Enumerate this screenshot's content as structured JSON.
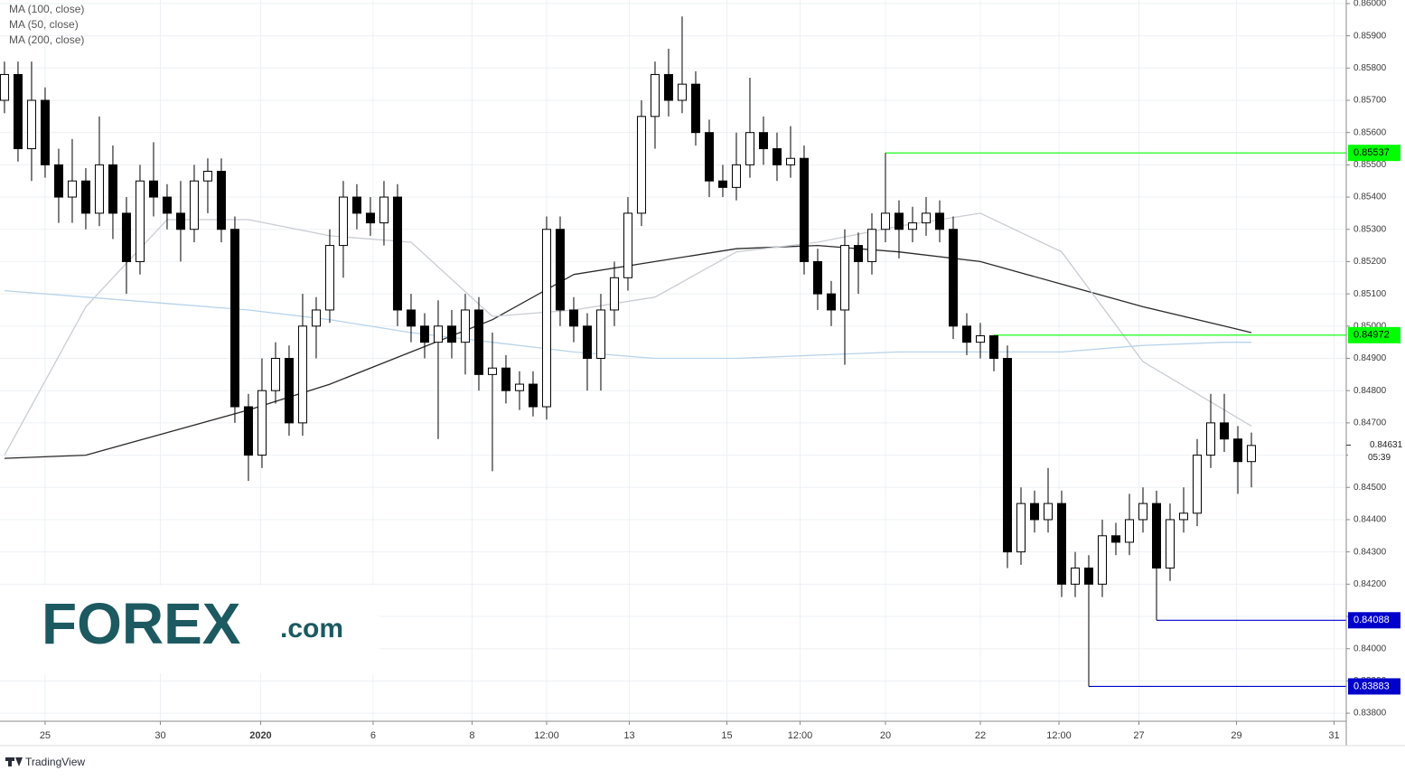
{
  "chart_data": {
    "type": "candlestick",
    "legend": [
      "MA (100, close)",
      "MA (50, close)",
      "MA (200, close)"
    ],
    "xlim": [
      -0.33,
      99
    ],
    "ylim": [
      0.83775,
      0.86011
    ],
    "grid": true,
    "up_color": "#ffffff",
    "down_color": "#000000",
    "xticks": [
      {
        "value": 3,
        "label": "25"
      },
      {
        "value": 11.5,
        "label": "30"
      },
      {
        "value": 18.9,
        "label": "2020"
      },
      {
        "value": 27.2,
        "label": "6"
      },
      {
        "value": 34.5,
        "label": "8"
      },
      {
        "value": 40,
        "label": "12:00"
      },
      {
        "value": 46.1,
        "label": "13"
      },
      {
        "value": 53.3,
        "label": "15"
      },
      {
        "value": 58.7,
        "label": "12:00"
      },
      {
        "value": 65,
        "label": "20"
      },
      {
        "value": 72,
        "label": "22"
      },
      {
        "value": 77.8,
        "label": "12:00"
      },
      {
        "value": 83.7,
        "label": "27"
      },
      {
        "value": 90.9,
        "label": "29"
      },
      {
        "value": 98.1,
        "label": "31"
      }
    ],
    "yticks": [
      {
        "value": 0.838,
        "label": "0.83800"
      },
      {
        "value": 0.839,
        "label": "0.83900"
      },
      {
        "value": 0.84,
        "label": "0.84000"
      },
      {
        "value": 0.841,
        "label": "0.84100"
      },
      {
        "value": 0.842,
        "label": "0.84200"
      },
      {
        "value": 0.843,
        "label": "0.84300"
      },
      {
        "value": 0.844,
        "label": "0.84400"
      },
      {
        "value": 0.845,
        "label": "0.84500"
      },
      {
        "value": 0.846,
        "label": "0.84600"
      },
      {
        "value": 0.847,
        "label": "0.84700"
      },
      {
        "value": 0.848,
        "label": "0.84800"
      },
      {
        "value": 0.849,
        "label": "0.84900"
      },
      {
        "value": 0.85,
        "label": "0.85000"
      },
      {
        "value": 0.851,
        "label": "0.85100"
      },
      {
        "value": 0.852,
        "label": "0.85200"
      },
      {
        "value": 0.853,
        "label": "0.85300"
      },
      {
        "value": 0.854,
        "label": "0.85400"
      },
      {
        "value": 0.855,
        "label": "0.85500"
      },
      {
        "value": 0.856,
        "label": "0.85600"
      },
      {
        "value": 0.857,
        "label": "0.85700"
      },
      {
        "value": 0.858,
        "label": "0.85800"
      },
      {
        "value": 0.859,
        "label": "0.85900"
      },
      {
        "value": 0.86,
        "label": "0.86000"
      }
    ],
    "candles": [
      [
        0.857,
        0.8582,
        0.8566,
        0.8578
      ],
      [
        0.8578,
        0.8582,
        0.8551,
        0.8555
      ],
      [
        0.8555,
        0.8582,
        0.8545,
        0.857
      ],
      [
        0.857,
        0.8574,
        0.8546,
        0.855
      ],
      [
        0.855,
        0.8555,
        0.8532,
        0.854
      ],
      [
        0.854,
        0.8558,
        0.8532,
        0.8545
      ],
      [
        0.8545,
        0.8549,
        0.853,
        0.8535
      ],
      [
        0.8535,
        0.8565,
        0.8531,
        0.855
      ],
      [
        0.855,
        0.8556,
        0.8527,
        0.8535
      ],
      [
        0.8535,
        0.854,
        0.851,
        0.852
      ],
      [
        0.852,
        0.855,
        0.8516,
        0.8545
      ],
      [
        0.8545,
        0.8557,
        0.8534,
        0.854
      ],
      [
        0.854,
        0.8544,
        0.853,
        0.8535
      ],
      [
        0.8535,
        0.8545,
        0.852,
        0.853
      ],
      [
        0.853,
        0.855,
        0.8526,
        0.8545
      ],
      [
        0.8545,
        0.8552,
        0.8535,
        0.8548
      ],
      [
        0.8548,
        0.8552,
        0.8526,
        0.853
      ],
      [
        0.853,
        0.8534,
        0.847,
        0.8475
      ],
      [
        0.8475,
        0.8479,
        0.8452,
        0.846
      ],
      [
        0.846,
        0.849,
        0.8456,
        0.848
      ],
      [
        0.848,
        0.8495,
        0.8476,
        0.849
      ],
      [
        0.849,
        0.8494,
        0.8466,
        0.847
      ],
      [
        0.847,
        0.851,
        0.8466,
        0.85
      ],
      [
        0.85,
        0.8509,
        0.849,
        0.8505
      ],
      [
        0.8505,
        0.853,
        0.8501,
        0.8525
      ],
      [
        0.8525,
        0.8545,
        0.8515,
        0.854
      ],
      [
        0.854,
        0.8544,
        0.853,
        0.8535
      ],
      [
        0.8535,
        0.854,
        0.8528,
        0.8532
      ],
      [
        0.8532,
        0.8545,
        0.8525,
        0.854
      ],
      [
        0.854,
        0.8544,
        0.85,
        0.8505
      ],
      [
        0.8505,
        0.851,
        0.8495,
        0.85
      ],
      [
        0.85,
        0.8504,
        0.849,
        0.8495
      ],
      [
        0.8495,
        0.8508,
        0.8465,
        0.85
      ],
      [
        0.85,
        0.8505,
        0.849,
        0.8495
      ],
      [
        0.8495,
        0.851,
        0.8485,
        0.8505
      ],
      [
        0.8505,
        0.8509,
        0.848,
        0.8485
      ],
      [
        0.8485,
        0.8498,
        0.8455,
        0.8487
      ],
      [
        0.8487,
        0.8491,
        0.8476,
        0.848
      ],
      [
        0.848,
        0.8486,
        0.8474,
        0.8482
      ],
      [
        0.8482,
        0.8486,
        0.8472,
        0.8475
      ],
      [
        0.8475,
        0.8534,
        0.8471,
        0.853
      ],
      [
        0.853,
        0.8534,
        0.85,
        0.8505
      ],
      [
        0.8505,
        0.8509,
        0.8495,
        0.85
      ],
      [
        0.85,
        0.8504,
        0.848,
        0.849
      ],
      [
        0.849,
        0.851,
        0.848,
        0.8505
      ],
      [
        0.8505,
        0.852,
        0.85,
        0.8515
      ],
      [
        0.8515,
        0.854,
        0.8511,
        0.8535
      ],
      [
        0.8535,
        0.857,
        0.8531,
        0.8565
      ],
      [
        0.8565,
        0.8582,
        0.8555,
        0.8578
      ],
      [
        0.8578,
        0.8586,
        0.8565,
        0.857
      ],
      [
        0.857,
        0.8596,
        0.8566,
        0.8575
      ],
      [
        0.8575,
        0.8579,
        0.8556,
        0.856
      ],
      [
        0.856,
        0.8564,
        0.854,
        0.8545
      ],
      [
        0.8545,
        0.855,
        0.854,
        0.8543
      ],
      [
        0.8543,
        0.856,
        0.8539,
        0.855
      ],
      [
        0.855,
        0.8577,
        0.8546,
        0.856
      ],
      [
        0.856,
        0.8565,
        0.855,
        0.8555
      ],
      [
        0.8555,
        0.856,
        0.8545,
        0.855
      ],
      [
        0.855,
        0.8562,
        0.8546,
        0.8552
      ],
      [
        0.8552,
        0.8556,
        0.8516,
        0.852
      ],
      [
        0.852,
        0.8524,
        0.8505,
        0.851
      ],
      [
        0.851,
        0.8514,
        0.85,
        0.8505
      ],
      [
        0.8505,
        0.853,
        0.8488,
        0.8525
      ],
      [
        0.8525,
        0.8529,
        0.851,
        0.852
      ],
      [
        0.852,
        0.8535,
        0.8516,
        0.853
      ],
      [
        0.853,
        0.85537,
        0.8526,
        0.8535
      ],
      [
        0.8535,
        0.8539,
        0.8521,
        0.853
      ],
      [
        0.853,
        0.8537,
        0.8526,
        0.8532
      ],
      [
        0.8532,
        0.854,
        0.8528,
        0.8535
      ],
      [
        0.8535,
        0.8539,
        0.8526,
        0.853
      ],
      [
        0.853,
        0.8534,
        0.8496,
        0.85
      ],
      [
        0.85,
        0.8504,
        0.8491,
        0.8495
      ],
      [
        0.8495,
        0.8501,
        0.849,
        0.8497
      ],
      [
        0.8497,
        0.84972,
        0.8486,
        0.849
      ],
      [
        0.849,
        0.8494,
        0.8425,
        0.843
      ],
      [
        0.843,
        0.845,
        0.8426,
        0.8445
      ],
      [
        0.8445,
        0.8449,
        0.8436,
        0.844
      ],
      [
        0.844,
        0.8456,
        0.8436,
        0.8445
      ],
      [
        0.8445,
        0.8449,
        0.8416,
        0.842
      ],
      [
        0.842,
        0.843,
        0.8416,
        0.8425
      ],
      [
        0.8425,
        0.8429,
        0.83883,
        0.842
      ],
      [
        0.842,
        0.844,
        0.8416,
        0.8435
      ],
      [
        0.8435,
        0.8439,
        0.8429,
        0.8433
      ],
      [
        0.8433,
        0.8448,
        0.8429,
        0.844
      ],
      [
        0.844,
        0.845,
        0.8436,
        0.8445
      ],
      [
        0.8445,
        0.8449,
        0.84088,
        0.8425
      ],
      [
        0.8425,
        0.8445,
        0.8421,
        0.844
      ],
      [
        0.844,
        0.845,
        0.8436,
        0.8442
      ],
      [
        0.8442,
        0.8465,
        0.8438,
        0.846
      ],
      [
        0.846,
        0.8479,
        0.8456,
        0.847
      ],
      [
        0.847,
        0.8479,
        0.8461,
        0.8465
      ],
      [
        0.8465,
        0.8469,
        0.8448,
        0.8458
      ],
      [
        0.8458,
        0.8467,
        0.845,
        0.8463
      ]
    ],
    "series": [
      {
        "name": "MA (100, close)",
        "color": "#2a2a2a",
        "x": [
          0,
          6,
          12,
          18,
          24,
          30,
          36,
          42,
          48,
          54,
          60,
          66,
          72,
          78,
          84,
          90,
          92
        ],
        "values": [
          0.8459,
          0.846,
          0.8467,
          0.8474,
          0.8482,
          0.8492,
          0.8502,
          0.8516,
          0.852,
          0.8524,
          0.8525,
          0.8523,
          0.852,
          0.8513,
          0.8506,
          0.85,
          0.8498
        ]
      },
      {
        "name": "MA (50, close)",
        "color": "#c9ccd3",
        "x": [
          0,
          6,
          12,
          18,
          24,
          30,
          36,
          42,
          48,
          54,
          60,
          66,
          72,
          78,
          84,
          90,
          92
        ],
        "values": [
          0.846,
          0.8506,
          0.8533,
          0.8533,
          0.8528,
          0.8526,
          0.8503,
          0.8505,
          0.8509,
          0.8523,
          0.8526,
          0.8531,
          0.8535,
          0.8523,
          0.8489,
          0.8474,
          0.8469
        ]
      },
      {
        "name": "MA (200, close)",
        "color": "#b7d3ea",
        "x": [
          0,
          6,
          12,
          18,
          24,
          30,
          36,
          42,
          48,
          54,
          60,
          66,
          72,
          78,
          84,
          90,
          92
        ],
        "values": [
          0.8511,
          0.8509,
          0.8507,
          0.8505,
          0.8502,
          0.8498,
          0.8495,
          0.8492,
          0.849,
          0.849,
          0.8491,
          0.8492,
          0.8492,
          0.8492,
          0.8494,
          0.8495,
          0.8495
        ]
      }
    ],
    "levels": [
      {
        "value": 0.85537,
        "x": 65,
        "color": "#00ff00"
      },
      {
        "value": 0.84972,
        "x": 73,
        "color": "#00ff00"
      },
      {
        "value": 0.84088,
        "x": 85,
        "color": "#0000cc"
      },
      {
        "value": 0.83883,
        "x": 80,
        "color": "#0000cc"
      }
    ],
    "last_price": 0.84631,
    "countdown": "05:39"
  },
  "branding": {
    "logo": "FOREX",
    "logo_suffix": ".com",
    "footer": "TradingView"
  }
}
